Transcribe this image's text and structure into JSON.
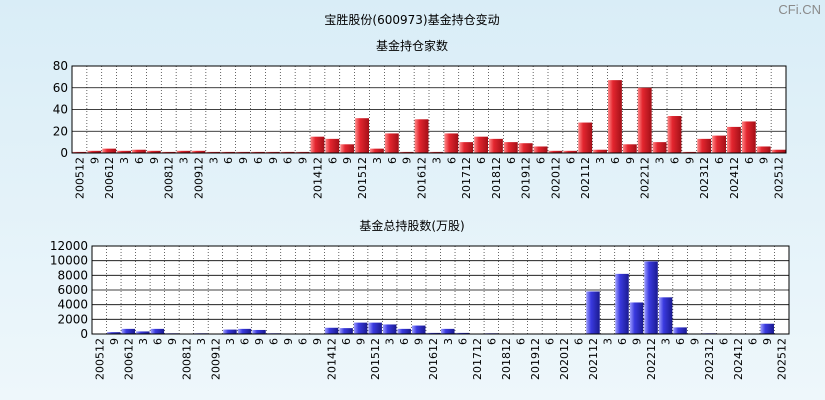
{
  "watermark": "CFi.CN",
  "main_title": "宝胜股份(600973)基金持仓变动",
  "chart_data": [
    {
      "type": "bar",
      "title": "基金持仓家数",
      "color": "#e4262f",
      "ylim": [
        0,
        80
      ],
      "yticks": [
        0,
        20,
        40,
        60,
        80
      ],
      "grid": true,
      "tick_labels": [
        "200512",
        "9",
        "200612",
        "3",
        "6",
        "9",
        "200812",
        "3",
        "200912",
        "3",
        "6",
        "9",
        "6",
        "9",
        "6",
        "9",
        "201412",
        "6",
        "9",
        "201512",
        "3",
        "6",
        "9",
        "201612",
        "3",
        "6",
        "201712",
        "6",
        "201812",
        "6",
        "201912",
        "6",
        "202012",
        "6",
        "202112",
        "3",
        "6",
        "9",
        "202212",
        "3",
        "6",
        "9",
        "202312",
        "6",
        "202412",
        "6",
        "9",
        "202512"
      ],
      "values": [
        1,
        2,
        4,
        2,
        3,
        2,
        1,
        2,
        2,
        1,
        1,
        1,
        1,
        1,
        1,
        1,
        15,
        13,
        8,
        32,
        4,
        18,
        1,
        31,
        1,
        18,
        10,
        15,
        13,
        10,
        9,
        6,
        2,
        2,
        28,
        3,
        67,
        8,
        60,
        10,
        34,
        1,
        13,
        16,
        24,
        29,
        6,
        3
      ]
    },
    {
      "type": "bar",
      "title": "基金总持股数(万股)",
      "color": "#3a3ae0",
      "ylim": [
        0,
        12000
      ],
      "yticks": [
        0,
        2000,
        4000,
        6000,
        8000,
        10000,
        12000
      ],
      "grid": true,
      "tick_labels": [
        "200512",
        "9",
        "200612",
        "3",
        "6",
        "9",
        "200812",
        "3",
        "200912",
        "3",
        "6",
        "9",
        "6",
        "9",
        "6",
        "9",
        "201412",
        "6",
        "9",
        "201512",
        "3",
        "6",
        "9",
        "201612",
        "3",
        "6",
        "201712",
        "6",
        "201812",
        "6",
        "201912",
        "6",
        "202012",
        "6",
        "202112",
        "3",
        "6",
        "9",
        "202212",
        "3",
        "6",
        "9",
        "202312",
        "6",
        "202412",
        "6",
        "9",
        "202512"
      ],
      "values": [
        50,
        250,
        700,
        350,
        700,
        100,
        50,
        100,
        50,
        600,
        700,
        550,
        100,
        50,
        50,
        50,
        850,
        800,
        1550,
        1550,
        1300,
        700,
        1150,
        150,
        700,
        150,
        50,
        100,
        50,
        50,
        50,
        50,
        50,
        50,
        5800,
        50,
        8200,
        4300,
        9900,
        5000,
        900,
        50,
        100,
        50,
        50,
        50,
        1400,
        50
      ]
    }
  ]
}
